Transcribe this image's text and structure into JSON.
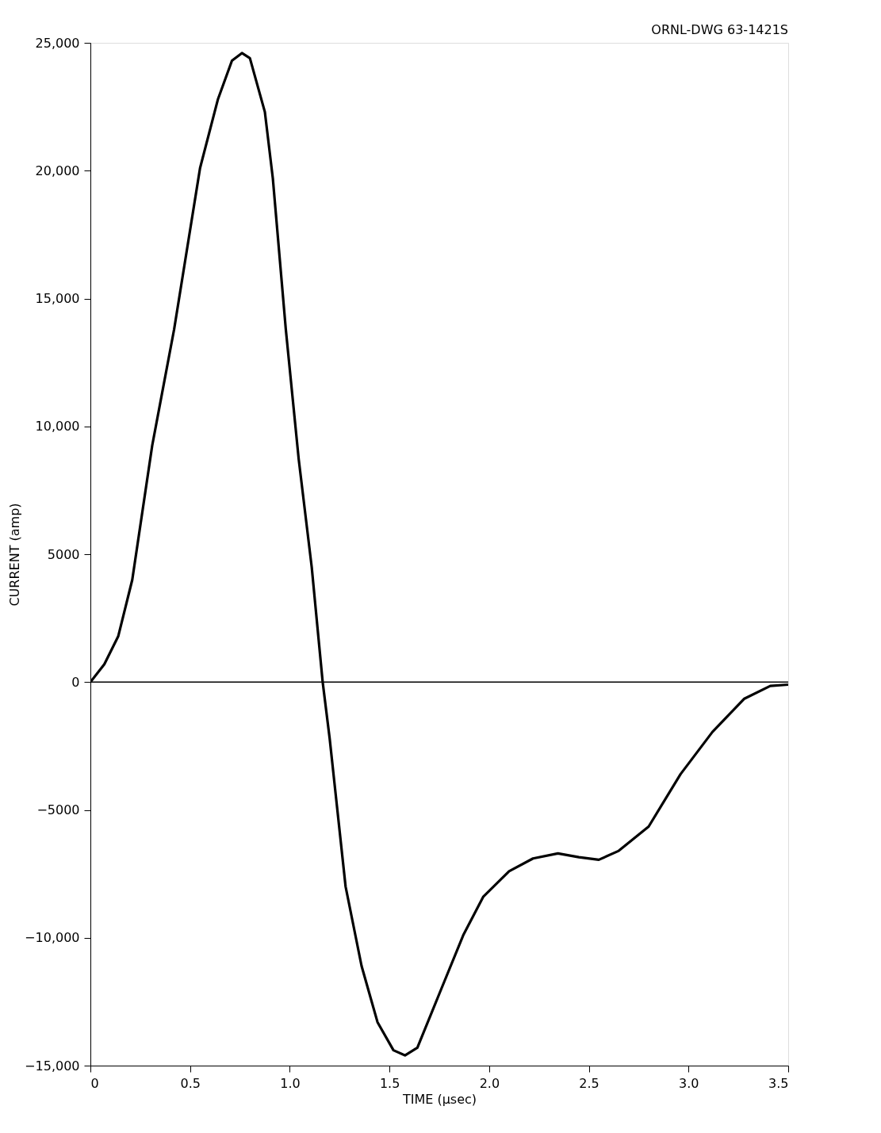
{
  "chart_data": {
    "type": "line",
    "xlabel": "TIME (μsec)",
    "ylabel": "CURRENT (amp)",
    "annotations": [
      "ORNL-DWG 63-1421S"
    ],
    "x": [
      0,
      0.07,
      0.14,
      0.21,
      0.31,
      0.42,
      0.55,
      0.64,
      0.71,
      0.76,
      0.8,
      0.875,
      0.915,
      0.98,
      1.045,
      1.11,
      1.165,
      1.2,
      1.28,
      1.36,
      1.44,
      1.52,
      1.578,
      1.64,
      1.76,
      1.87,
      1.97,
      2.1,
      2.22,
      2.345,
      2.45,
      2.55,
      2.65,
      2.8,
      2.96,
      3.12,
      3.28,
      3.41,
      3.5
    ],
    "series": [
      {
        "color": "#000000",
        "values": [
          0,
          700,
          1800,
          4000,
          9250,
          13800,
          20100,
          22800,
          24300,
          24600,
          24400,
          22300,
          19700,
          13800,
          8700,
          4500,
          0,
          -2200,
          -8000,
          -11100,
          -13300,
          -14400,
          -14600,
          -14300,
          -12000,
          -9900,
          -8400,
          -7400,
          -6900,
          -6700,
          -6850,
          -6950,
          -6600,
          -5650,
          -3600,
          -1950,
          -650,
          -150,
          -100
        ]
      }
    ],
    "xlim": [
      0,
      3.5
    ],
    "ylim": [
      -15000,
      25000
    ],
    "xticks": [
      {
        "value": 0,
        "label": "0"
      },
      0.5,
      {
        "value": 1,
        "label": "1.0"
      },
      1.5,
      {
        "value": 2,
        "label": "2.0"
      },
      2.5,
      {
        "value": 3,
        "label": "3.0"
      },
      3.5
    ],
    "yticks": [
      {
        "value": -15000,
        "label": "−15,000"
      },
      {
        "value": -10000,
        "label": "−10,000"
      },
      {
        "value": -5000,
        "label": "−5000"
      },
      0,
      5000,
      {
        "value": 10000,
        "label": "10,000"
      },
      {
        "value": 15000,
        "label": "15,000"
      },
      {
        "value": 20000,
        "label": "20,000"
      },
      {
        "value": 25000,
        "label": "25,000"
      }
    ],
    "ref_lines": [
      {
        "axis": "y",
        "value": 0,
        "color": "#000000"
      }
    ],
    "grid": false,
    "marker": "none",
    "line_style": "solid"
  }
}
